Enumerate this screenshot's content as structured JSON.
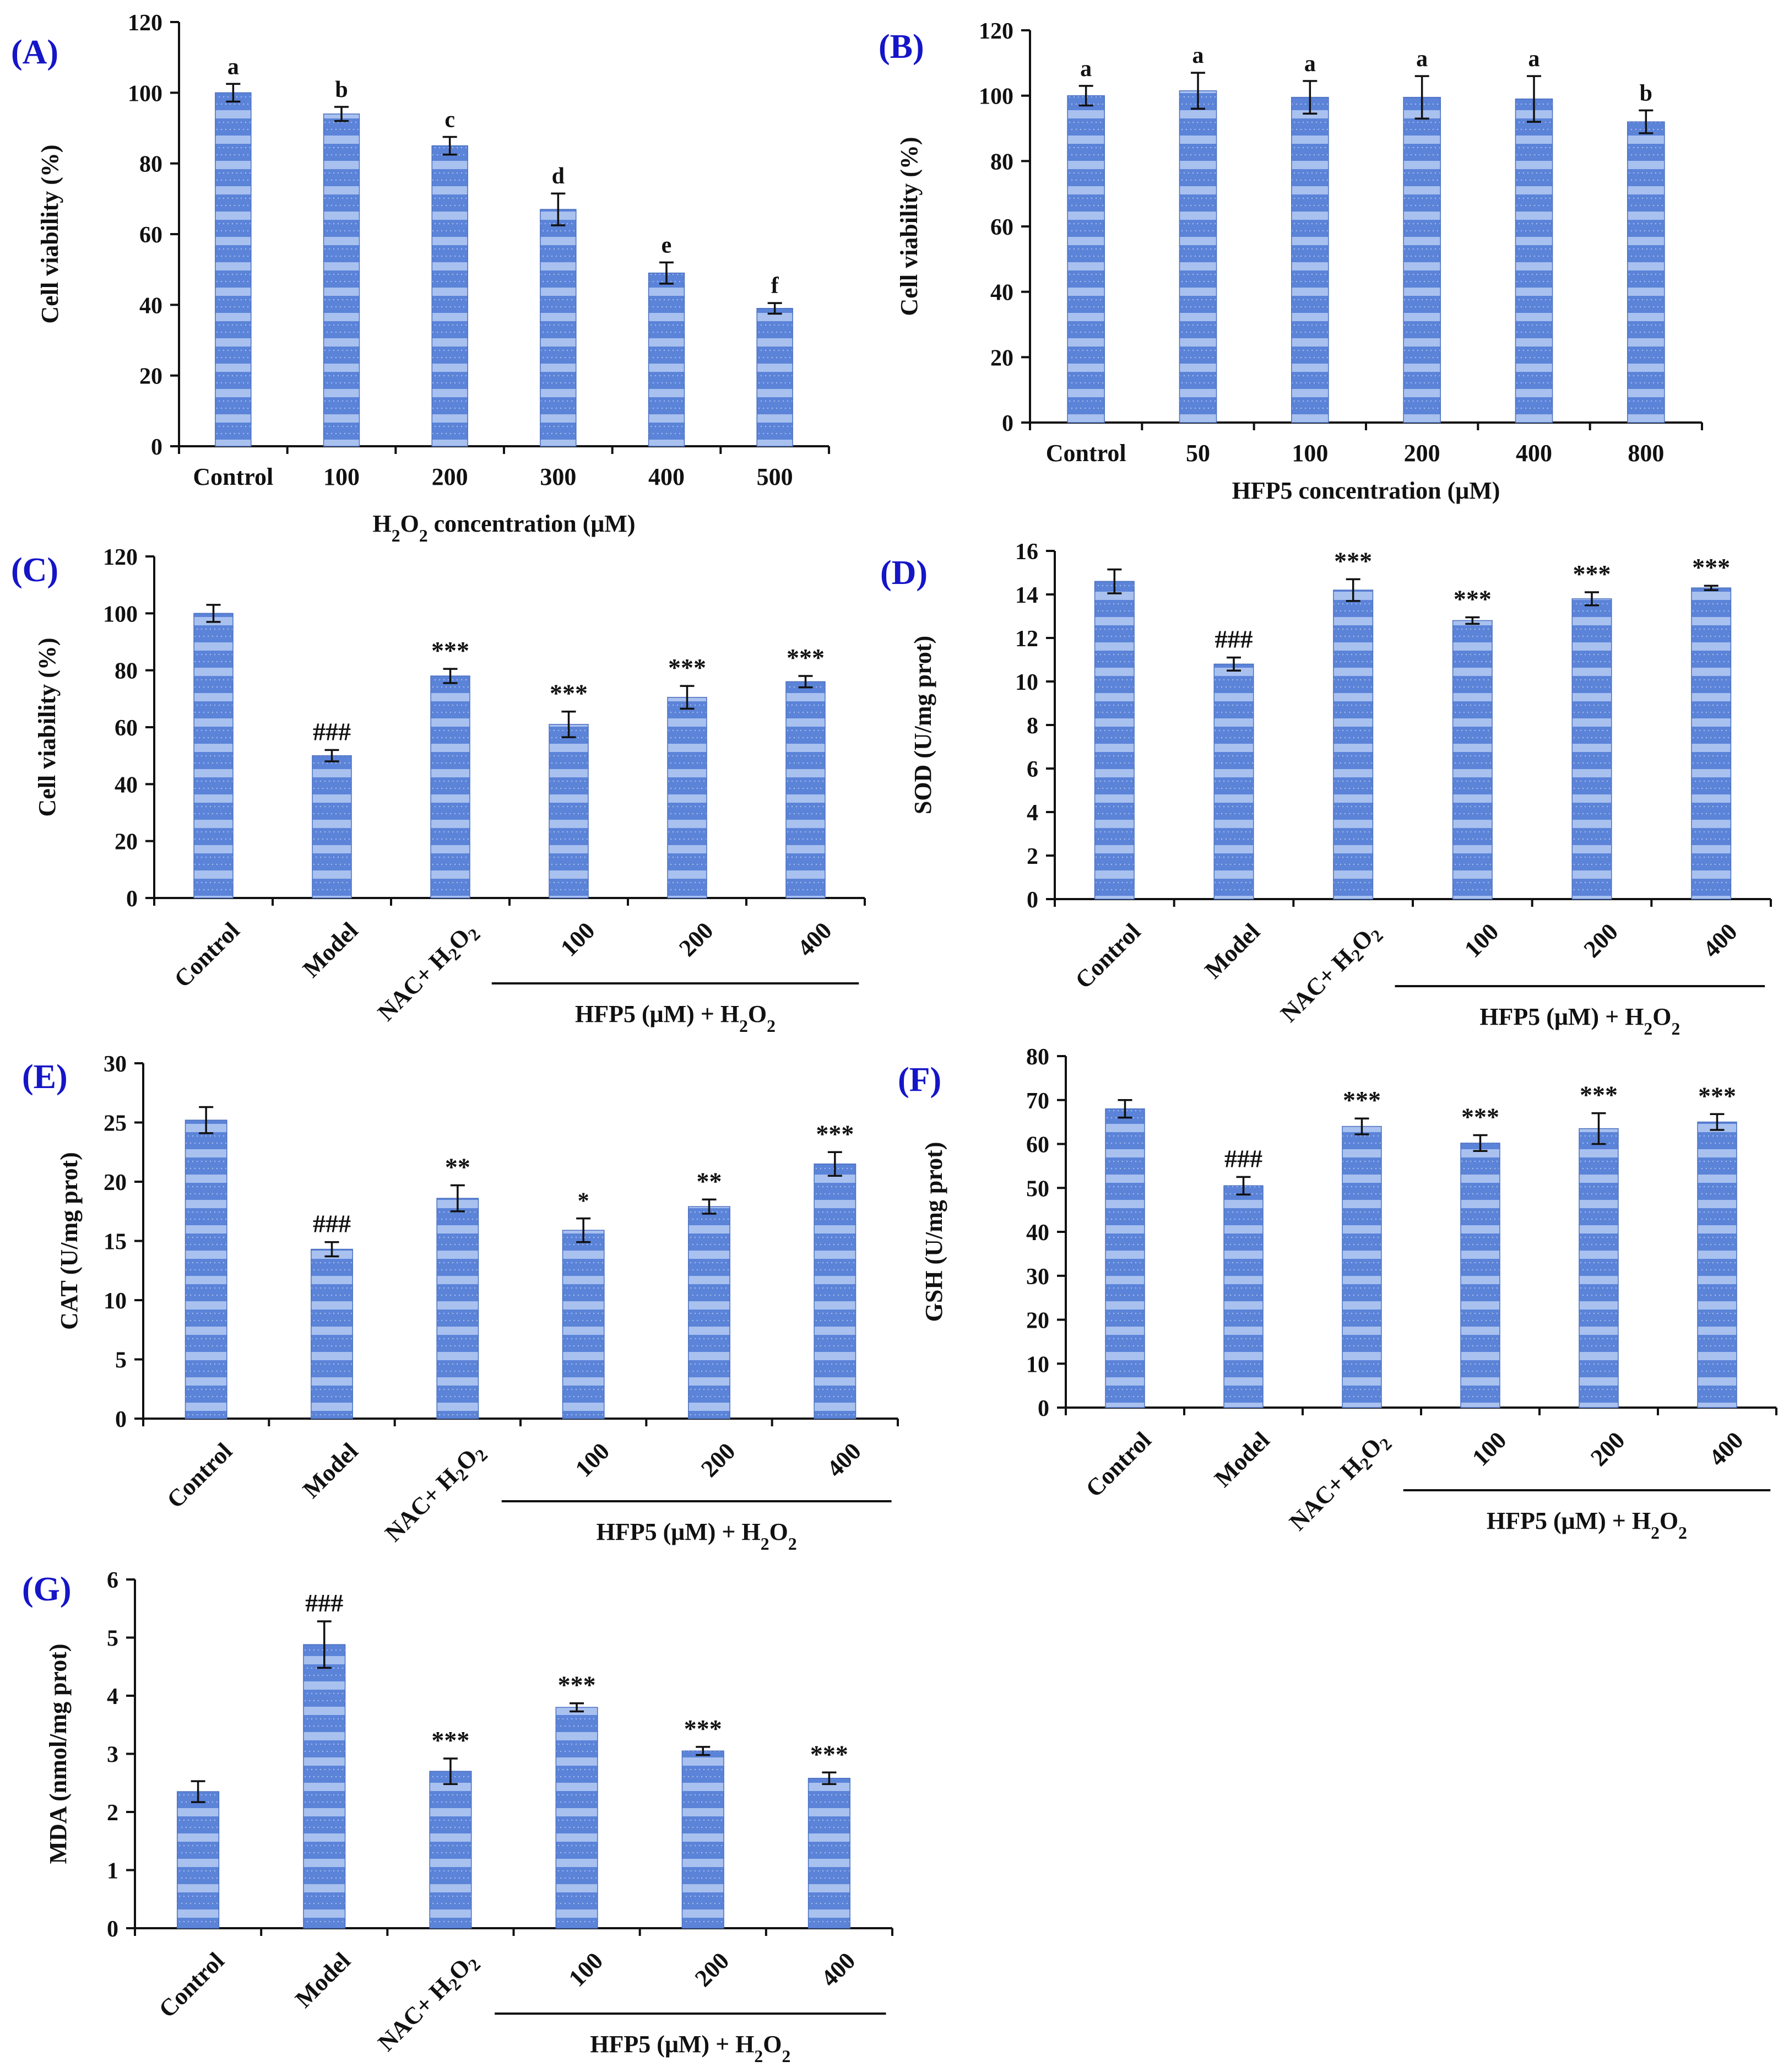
{
  "figure": {
    "colors": {
      "bar_fill": "#5b83d8",
      "bar_stripe": "#a9c1ef",
      "axis": "#111111",
      "panel_label": "#1515c8"
    }
  },
  "chart_data": [
    {
      "id": "A",
      "panel_label": "(A)",
      "type": "bar",
      "categories": [
        "Control",
        "100",
        "200",
        "300",
        "400",
        "500"
      ],
      "values": [
        100,
        94,
        85,
        67,
        49,
        39
      ],
      "errors": [
        2.5,
        2,
        2.5,
        4.5,
        3,
        1.5
      ],
      "annotations": [
        "a",
        "b",
        "c",
        "d",
        "e",
        "f"
      ],
      "title": "",
      "xlabel": "H₂O₂ concentration (μM)",
      "ylabel": "Cell viability (%)",
      "ylim": [
        0,
        120
      ],
      "yticks": [
        0,
        20,
        40,
        60,
        80,
        100,
        120
      ],
      "group_label": "",
      "grid": false,
      "legend": "none"
    },
    {
      "id": "B",
      "panel_label": "(B)",
      "type": "bar",
      "categories": [
        "Control",
        "50",
        "100",
        "200",
        "400",
        "800"
      ],
      "values": [
        100,
        101.5,
        99.5,
        99.5,
        99,
        92
      ],
      "errors": [
        3,
        5.5,
        5,
        6.5,
        7,
        3.5
      ],
      "annotations": [
        "a",
        "a",
        "a",
        "a",
        "a",
        "b"
      ],
      "title": "",
      "xlabel": "HFP5 concentration (μM)",
      "ylabel": "Cell viability (%)",
      "ylim": [
        0,
        120
      ],
      "yticks": [
        0,
        20,
        40,
        60,
        80,
        100,
        120
      ],
      "group_label": "",
      "grid": false,
      "legend": "none"
    },
    {
      "id": "C",
      "panel_label": "(C)",
      "type": "bar",
      "categories": [
        "Control",
        "Model",
        "NAC+ H₂O₂",
        "100",
        "200",
        "400"
      ],
      "values": [
        100,
        50,
        78,
        61,
        70.5,
        76
      ],
      "errors": [
        3,
        2,
        2.5,
        4.5,
        4,
        2
      ],
      "annotations": [
        "",
        "###",
        "***",
        "***",
        "***",
        "***"
      ],
      "title": "",
      "xlabel": "",
      "ylabel": "Cell viability (%)",
      "ylim": [
        0,
        120
      ],
      "yticks": [
        0,
        20,
        40,
        60,
        80,
        100,
        120
      ],
      "group_label": "HFP5 (μM) + H₂O₂",
      "grid": false,
      "legend": "none"
    },
    {
      "id": "D",
      "panel_label": "(D)",
      "type": "bar",
      "categories": [
        "Control",
        "Model",
        "NAC+ H₂O₂",
        "100",
        "200",
        "400"
      ],
      "values": [
        14.6,
        10.8,
        14.2,
        12.8,
        13.8,
        14.3
      ],
      "errors": [
        0.55,
        0.3,
        0.5,
        0.15,
        0.3,
        0.1
      ],
      "annotations": [
        "",
        "###",
        "***",
        "***",
        "***",
        "***"
      ],
      "title": "",
      "xlabel": "",
      "ylabel": "SOD (U/mg prot)",
      "ylim": [
        0,
        16
      ],
      "yticks": [
        0,
        2,
        4,
        6,
        8,
        10,
        12,
        14,
        16
      ],
      "group_label": "HFP5 (μM) + H₂O₂",
      "grid": false,
      "legend": "none"
    },
    {
      "id": "E",
      "panel_label": "(E)",
      "type": "bar",
      "categories": [
        "Control",
        "Model",
        "NAC+ H₂O₂",
        "100",
        "200",
        "400"
      ],
      "values": [
        25.2,
        14.3,
        18.6,
        15.9,
        17.9,
        21.5
      ],
      "errors": [
        1.1,
        0.6,
        1.1,
        1,
        0.6,
        1
      ],
      "annotations": [
        "",
        "###",
        "**",
        "*",
        "**",
        "***"
      ],
      "title": "",
      "xlabel": "",
      "ylabel": "CAT (U/mg prot)",
      "ylim": [
        0,
        30
      ],
      "yticks": [
        0,
        5,
        10,
        15,
        20,
        25,
        30
      ],
      "group_label": "HFP5 (μM) + H₂O₂",
      "grid": false,
      "legend": "none"
    },
    {
      "id": "F",
      "panel_label": "(F)",
      "type": "bar",
      "categories": [
        "Control",
        "Model",
        "NAC+ H₂O₂",
        "100",
        "200",
        "400"
      ],
      "values": [
        68,
        50.5,
        64,
        60.2,
        63.5,
        65
      ],
      "errors": [
        2,
        2,
        1.8,
        1.8,
        3.5,
        1.8
      ],
      "annotations": [
        "",
        "###",
        "***",
        "***",
        "***",
        "***"
      ],
      "title": "",
      "xlabel": "",
      "ylabel": "GSH (U/mg prot)",
      "ylim": [
        0,
        80
      ],
      "yticks": [
        0,
        10,
        20,
        30,
        40,
        50,
        60,
        70,
        80
      ],
      "group_label": "HFP5 (μM) + H₂O₂",
      "grid": false,
      "legend": "none"
    },
    {
      "id": "G",
      "panel_label": "(G)",
      "type": "bar",
      "categories": [
        "Control",
        "Model",
        "NAC+ H₂O₂",
        "100",
        "200",
        "400"
      ],
      "values": [
        2.35,
        4.88,
        2.7,
        3.8,
        3.05,
        2.58
      ],
      "errors": [
        0.18,
        0.4,
        0.22,
        0.07,
        0.07,
        0.1
      ],
      "annotations": [
        "",
        "###",
        "***",
        "***",
        "***",
        "***"
      ],
      "title": "",
      "xlabel": "",
      "ylabel": "MDA (nmol/mg prot)",
      "ylim": [
        0,
        6
      ],
      "yticks": [
        0,
        1,
        2,
        3,
        4,
        5,
        6
      ],
      "group_label": "HFP5 (μM) + H₂O₂",
      "grid": false,
      "legend": "none"
    }
  ]
}
